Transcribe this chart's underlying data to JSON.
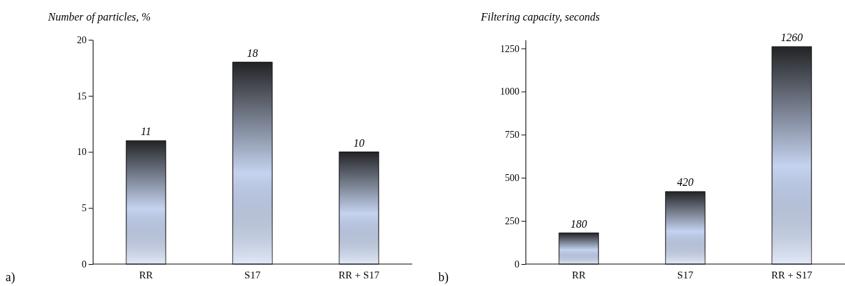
{
  "chart_data": [
    {
      "type": "bar",
      "title": "Number of particles, %",
      "categories": [
        "RR",
        "S17",
        "RR + S17"
      ],
      "values": [
        11,
        18,
        10
      ],
      "color": "#c5d3f0",
      "ylim": [
        0,
        20
      ],
      "yticks": [
        0,
        5,
        10,
        15,
        20
      ],
      "data_labels": true,
      "annotations": [
        "a)"
      ]
    },
    {
      "type": "bar",
      "title": "Filtering capacity, seconds",
      "categories": [
        "RR",
        "S17",
        "RR + S17"
      ],
      "values": [
        180,
        420,
        1260
      ],
      "color": "#c5d3f0",
      "ylim": [
        0,
        1300
      ],
      "yticks": [
        0,
        250,
        500,
        750,
        1000,
        1250
      ],
      "data_labels": true,
      "annotations": [
        "b)"
      ]
    }
  ]
}
